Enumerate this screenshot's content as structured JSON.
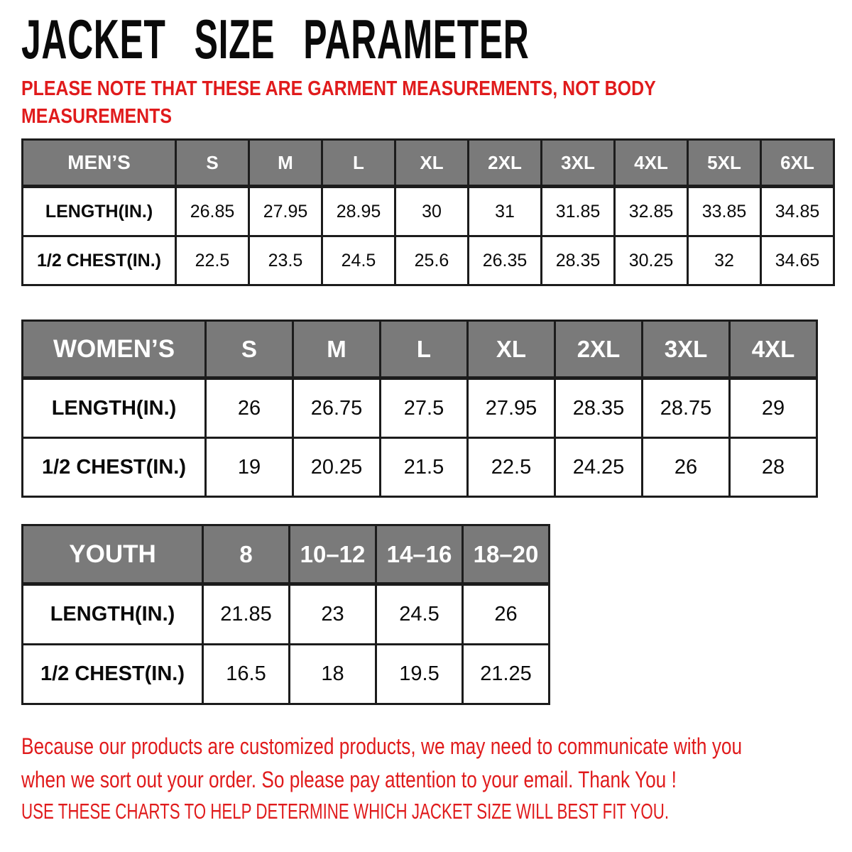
{
  "texts": {
    "title": "JACKET SIZE PARAMETER",
    "note_lines": [
      "PLEASE NOTE THAT THESE ARE GARMENT MEASUREMENTS, NOT BODY",
      "MEASUREMENTS"
    ],
    "footer_note_lines": [
      "Because our products are customized products, we may need to communicate with you",
      "when we sort out your order. So please pay attention to your email. Thank You !"
    ],
    "footer_usage_line": "USE THESE CHARTS TO HELP DETERMINE WHICH JACKET SIZE WILL BEST FIT YOU."
  },
  "colors": {
    "accent_red": "#e01b1c",
    "header_gray": "#7a7a7a",
    "border_dark": "#1c1c1c",
    "text_black": "#0a0a0a",
    "header_text": "#ffffff",
    "background": "#ffffff"
  },
  "tables": [
    {
      "name": "MEN’S",
      "sizes": [
        "S",
        "M",
        "L",
        "XL",
        "2XL",
        "3XL",
        "4XL",
        "5XL",
        "6XL"
      ],
      "rows": [
        {
          "label": "LENGTH(IN.)",
          "values": [
            "26.85",
            "27.95",
            "28.95",
            "30",
            "31",
            "31.85",
            "32.85",
            "33.85",
            "34.85"
          ]
        },
        {
          "label": "1/2 CHEST(IN.)",
          "values": [
            "22.5",
            "23.5",
            "24.5",
            "25.6",
            "26.35",
            "28.35",
            "30.25",
            "32",
            "34.65"
          ]
        }
      ]
    },
    {
      "name": "WOMEN’S",
      "sizes": [
        "S",
        "M",
        "L",
        "XL",
        "2XL",
        "3XL",
        "4XL"
      ],
      "rows": [
        {
          "label": "LENGTH(IN.)",
          "values": [
            "26",
            "26.75",
            "27.5",
            "27.95",
            "28.35",
            "28.75",
            "29"
          ]
        },
        {
          "label": "1/2 CHEST(IN.)",
          "values": [
            "19",
            "20.25",
            "21.5",
            "22.5",
            "24.25",
            "26",
            "28"
          ]
        }
      ]
    },
    {
      "name": "YOUTH",
      "sizes": [
        "8",
        "10–12",
        "14–16",
        "18–20"
      ],
      "rows": [
        {
          "label": "LENGTH(IN.)",
          "values": [
            "21.85",
            "23",
            "24.5",
            "26"
          ]
        },
        {
          "label": "1/2 CHEST(IN.)",
          "values": [
            "16.5",
            "18",
            "19.5",
            "21.25"
          ]
        }
      ]
    }
  ]
}
